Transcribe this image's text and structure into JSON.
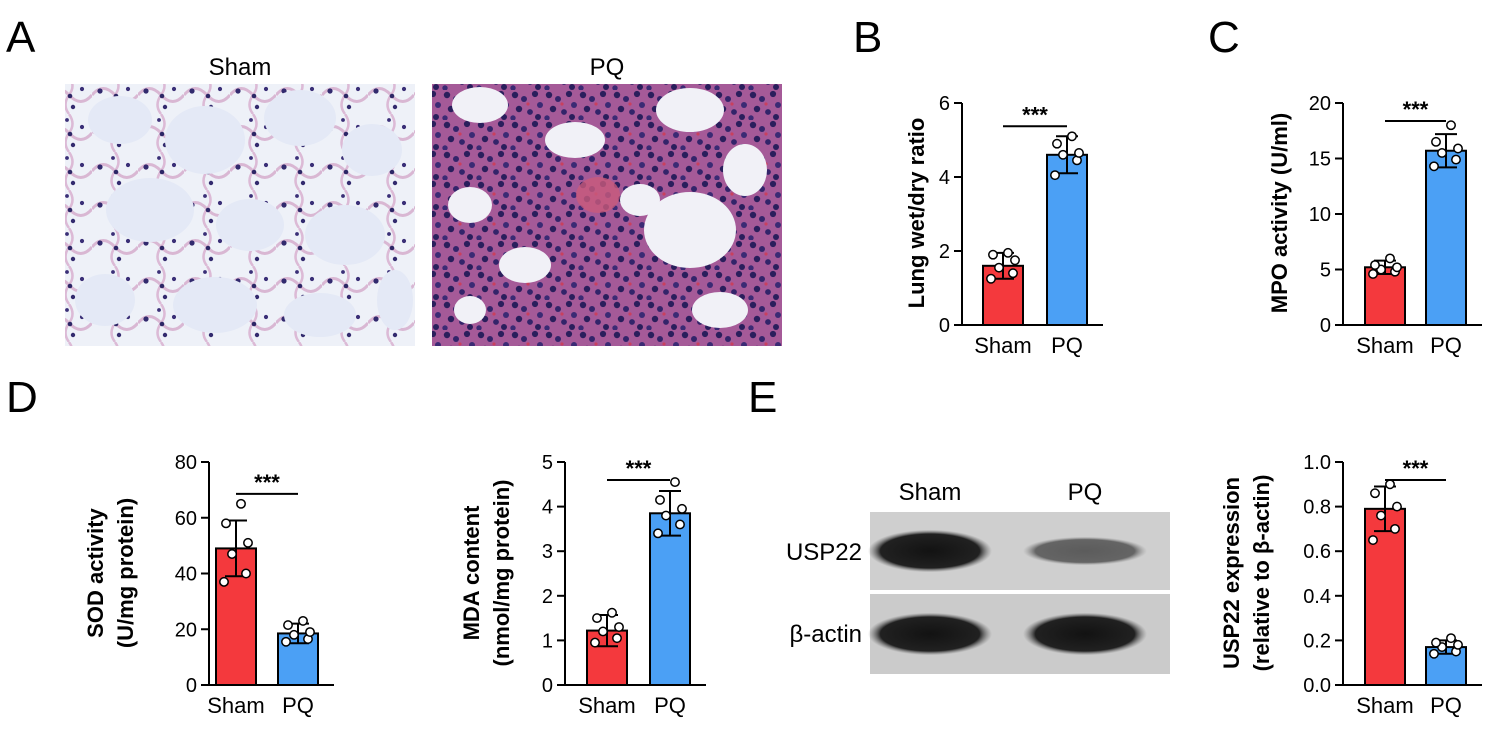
{
  "panels": {
    "A": {
      "letter": "A",
      "labels": [
        "Sham",
        "PQ"
      ]
    },
    "E": {
      "letter": "E",
      "blot": {
        "lane_labels": [
          "Sham",
          "PQ"
        ],
        "rows": [
          {
            "label": "USP22",
            "intensity": [
              0.95,
              0.45
            ]
          },
          {
            "label": "β-actin",
            "intensity": [
              0.95,
              0.95
            ]
          }
        ]
      }
    }
  },
  "chart_data": [
    {
      "id": "B",
      "letter": "B",
      "type": "bar",
      "categories": [
        "Sham",
        "PQ"
      ],
      "ylabel": [
        "Lung wet/dry ratio"
      ],
      "ylim": [
        0,
        6
      ],
      "yticks": [
        0,
        2,
        4,
        6
      ],
      "series": [
        {
          "values": [
            1.6,
            4.6
          ],
          "errors": [
            0.35,
            0.5
          ],
          "points": [
            [
              1.25,
              1.4,
              1.55,
              1.75,
              1.9,
              1.95
            ],
            [
              4.05,
              4.45,
              4.6,
              4.65,
              4.9,
              5.1
            ]
          ]
        }
      ],
      "colors": [
        "#f4393d",
        "#4ba0f5"
      ],
      "significance": "***"
    },
    {
      "id": "C",
      "letter": "C",
      "type": "bar",
      "categories": [
        "Sham",
        "PQ"
      ],
      "ylabel": [
        "MPO activity (U/ml)"
      ],
      "ylim": [
        0,
        20
      ],
      "yticks": [
        0,
        5,
        10,
        15,
        20
      ],
      "series": [
        {
          "values": [
            5.2,
            15.7
          ],
          "errors": [
            0.6,
            1.5
          ],
          "points": [
            [
              4.6,
              4.8,
              5.0,
              5.2,
              5.4,
              6.0
            ],
            [
              14.3,
              14.9,
              15.5,
              15.9,
              16.5,
              18.0
            ]
          ]
        }
      ],
      "colors": [
        "#f4393d",
        "#4ba0f5"
      ],
      "significance": "***"
    },
    {
      "id": "D1",
      "letter": "D",
      "type": "bar",
      "categories": [
        "Sham",
        "PQ"
      ],
      "ylabel": [
        "SOD activity",
        "(U/mg protein)"
      ],
      "ylim": [
        0,
        80
      ],
      "yticks": [
        0,
        20,
        40,
        60,
        80
      ],
      "series": [
        {
          "values": [
            49,
            18.5
          ],
          "errors": [
            10,
            3.5
          ],
          "points": [
            [
              37,
              40,
              47,
              51,
              58,
              65
            ],
            [
              15.5,
              16.5,
              18,
              19,
              21.5,
              23
            ]
          ]
        }
      ],
      "colors": [
        "#f4393d",
        "#4ba0f5"
      ],
      "significance": "***"
    },
    {
      "id": "D2",
      "letter": "",
      "type": "bar",
      "categories": [
        "Sham",
        "PQ"
      ],
      "ylabel": [
        "MDA content",
        "(nmol/mg protein)"
      ],
      "ylim": [
        0,
        5
      ],
      "yticks": [
        0,
        1,
        2,
        3,
        4,
        5
      ],
      "series": [
        {
          "values": [
            1.22,
            3.85
          ],
          "errors": [
            0.35,
            0.5
          ],
          "points": [
            [
              0.95,
              1.05,
              1.2,
              1.3,
              1.5,
              1.62
            ],
            [
              3.4,
              3.6,
              3.8,
              3.95,
              4.15,
              4.55
            ]
          ]
        }
      ],
      "colors": [
        "#f4393d",
        "#4ba0f5"
      ],
      "significance": "***"
    },
    {
      "id": "E2",
      "letter": "",
      "type": "bar",
      "categories": [
        "Sham",
        "PQ"
      ],
      "ylabel": [
        "USP22 expression",
        "(relative to β-actin)"
      ],
      "ylim": [
        0,
        1.0
      ],
      "yticks": [
        0.0,
        0.2,
        0.4,
        0.6,
        0.8,
        1.0
      ],
      "series": [
        {
          "values": [
            0.79,
            0.17
          ],
          "errors": [
            0.1,
            0.03
          ],
          "points": [
            [
              0.65,
              0.7,
              0.76,
              0.8,
              0.86,
              0.9
            ],
            [
              0.14,
              0.15,
              0.17,
              0.18,
              0.19,
              0.21
            ]
          ]
        }
      ],
      "colors": [
        "#f4393d",
        "#4ba0f5"
      ],
      "significance": "***"
    }
  ]
}
